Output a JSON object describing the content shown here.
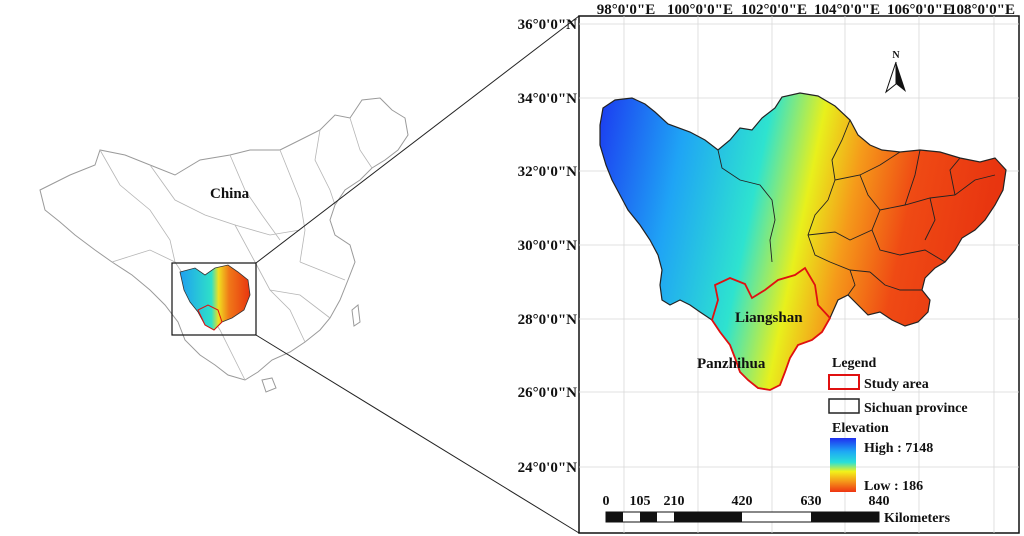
{
  "overview": {
    "country_label": "China"
  },
  "map": {
    "longitude_labels": [
      "98°0'0\"E",
      "100°0'0\"E",
      "102°0'0\"E",
      "104°0'0\"E",
      "106°0'0\"E",
      "108°0'0\"E"
    ],
    "latitude_labels": [
      "36°0'0\"N",
      "34°0'0\"N",
      "32°0'0\"N",
      "30°0'0\"N",
      "28°0'0\"N",
      "26°0'0\"N",
      "24°0'0\"N"
    ],
    "north_label": "N",
    "place_labels": {
      "liangshan": "Liangshan",
      "panzhihua": "Panzhihua"
    }
  },
  "legend": {
    "title": "Legend",
    "study_area": "Study area",
    "sichuan_province": "Sichuan province",
    "elevation_title": "Elevation",
    "high_label": "High : 7148",
    "low_label": "Low : 186",
    "colors": [
      "#1f2ef0",
      "#1ea8f5",
      "#29e0d8",
      "#f2f21a",
      "#f59a1a",
      "#ee3412"
    ],
    "study_area_color": "#e01010",
    "province_color": "#222222"
  },
  "scale_bar": {
    "ticks": [
      "0",
      "105",
      "210",
      "420",
      "630",
      "840"
    ],
    "unit": "Kilometers"
  }
}
